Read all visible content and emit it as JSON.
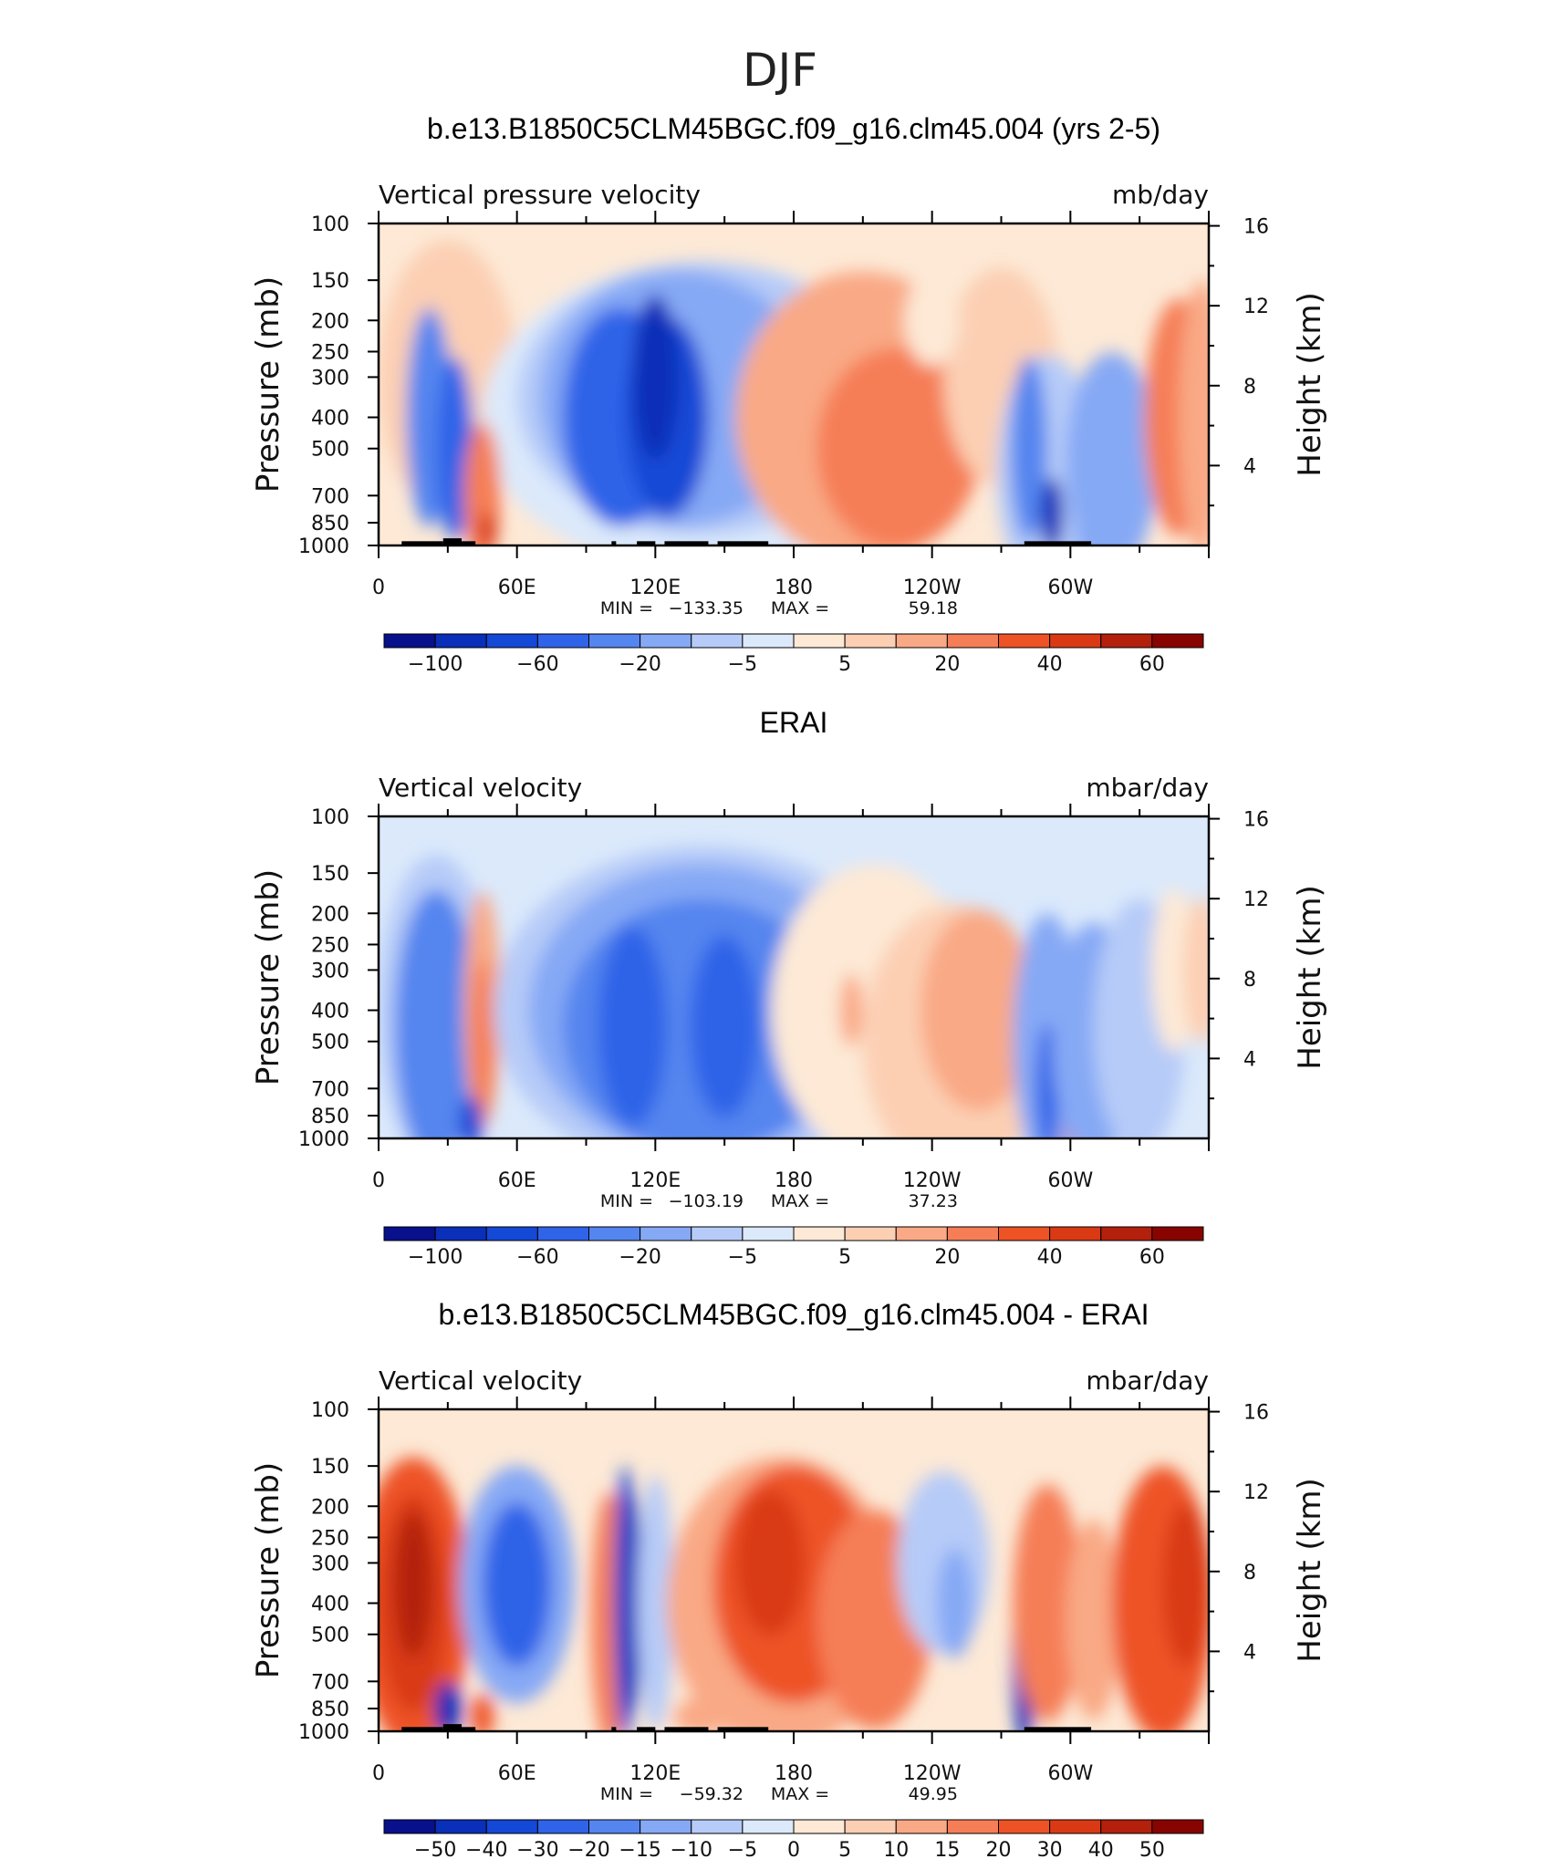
{
  "figure": {
    "suptitle": "DJF"
  },
  "colors": {
    "cmap_main": [
      "#08108c",
      "#0a2fb8",
      "#1448d6",
      "#2f63e8",
      "#5585ef",
      "#86a9f5",
      "#b6cbf8",
      "#dbe9fb",
      "#fde9d6",
      "#fccfb3",
      "#f9a985",
      "#f57e57",
      "#ee5326",
      "#d93a14",
      "#b3200c",
      "#880400"
    ],
    "cmap_diff": [
      "#08108c",
      "#0a2fb8",
      "#1448d6",
      "#2f63e8",
      "#5585ef",
      "#86a9f5",
      "#b6cbf8",
      "#dbe9fb",
      "#fde9d6",
      "#fccfb3",
      "#f9a985",
      "#f57e57",
      "#ee5326",
      "#d93a14",
      "#b3200c",
      "#880400"
    ],
    "topography": "#000000"
  },
  "chart_data": [
    {
      "type": "heatmap",
      "title": "b.e13.B1850C5CLM45BGC.f09_g16.clm45.004 (yrs 2-5)",
      "left_label": "Vertical pressure velocity",
      "right_label": "mb/day",
      "ylabel": "Pressure (mb)",
      "ylabel_right": "Height (km)",
      "yticks": [
        "100",
        "150",
        "200",
        "250",
        "300",
        "400",
        "500",
        "700",
        "850",
        "1000"
      ],
      "yticks_right": [
        "16",
        "12",
        "8",
        "4"
      ],
      "xticks": [
        "0",
        "60E",
        "120E",
        "180",
        "120W",
        "60W"
      ],
      "xlim": [
        0,
        360
      ],
      "ylim": [
        1000,
        100
      ],
      "min_label": "MIN =",
      "min_value": "−133.35",
      "max_label": "MAX =",
      "max_value": "59.18",
      "colorbar_labels": [
        "−100",
        "−60",
        "−20",
        "−5",
        "5",
        "20",
        "40",
        "60"
      ],
      "colorbar_variant": "main"
    },
    {
      "type": "heatmap",
      "title": "ERAI",
      "left_label": "Vertical velocity",
      "right_label": "mbar/day",
      "ylabel": "Pressure (mb)",
      "ylabel_right": "Height (km)",
      "yticks": [
        "100",
        "150",
        "200",
        "250",
        "300",
        "400",
        "500",
        "700",
        "850",
        "1000"
      ],
      "yticks_right": [
        "16",
        "12",
        "8",
        "4"
      ],
      "xticks": [
        "0",
        "60E",
        "120E",
        "180",
        "120W",
        "60W"
      ],
      "xlim": [
        0,
        360
      ],
      "ylim": [
        1000,
        100
      ],
      "min_label": "MIN =",
      "min_value": "−103.19",
      "max_label": "MAX =",
      "max_value": "37.23",
      "colorbar_labels": [
        "−100",
        "−60",
        "−20",
        "−5",
        "5",
        "20",
        "40",
        "60"
      ],
      "colorbar_variant": "main"
    },
    {
      "type": "heatmap",
      "title": "b.e13.B1850C5CLM45BGC.f09_g16.clm45.004 - ERAI",
      "left_label": "Vertical velocity",
      "right_label": "mbar/day",
      "ylabel": "Pressure (mb)",
      "ylabel_right": "Height (km)",
      "yticks": [
        "100",
        "150",
        "200",
        "250",
        "300",
        "400",
        "500",
        "700",
        "850",
        "1000"
      ],
      "yticks_right": [
        "16",
        "12",
        "8",
        "4"
      ],
      "xticks": [
        "0",
        "60E",
        "120E",
        "180",
        "120W",
        "60W"
      ],
      "xlim": [
        0,
        360
      ],
      "ylim": [
        1000,
        100
      ],
      "min_label": "MIN =",
      "min_value": "−59.32",
      "max_label": "MAX =",
      "max_value": "49.95",
      "colorbar_labels": [
        "−50",
        "−40",
        "−30",
        "−20",
        "−15",
        "−10",
        "−5",
        "0",
        "5",
        "10",
        "15",
        "20",
        "30",
        "40",
        "50"
      ],
      "colorbar_variant": "diff"
    }
  ]
}
